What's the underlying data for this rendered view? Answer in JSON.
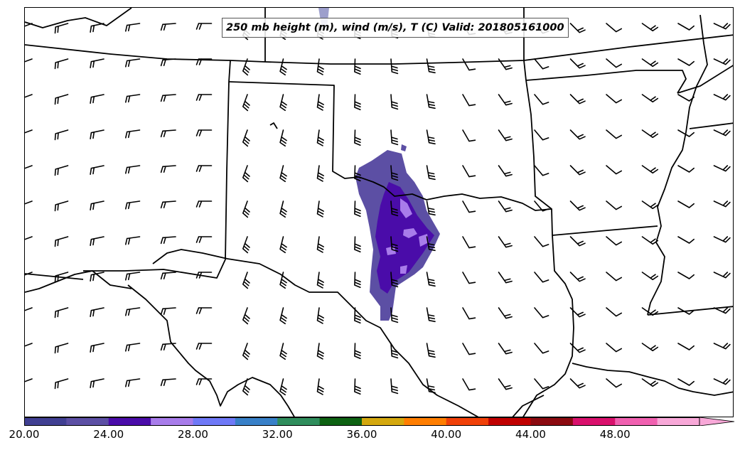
{
  "title": "250 mb height (m), wind (m/s), T (C) Valid: 201805161000",
  "colorbar": {
    "min": 20,
    "max": 52,
    "step": 2,
    "ticks": [
      "20.00",
      "24.00",
      "28.00",
      "32.00",
      "36.00",
      "40.00",
      "44.00",
      "48.00"
    ],
    "tick_values": [
      20,
      24,
      28,
      32,
      36,
      40,
      44,
      48
    ],
    "colors": [
      "#403f92",
      "#5c4fa4",
      "#4a0ca9",
      "#a87cea",
      "#6f79f7",
      "#3880c8",
      "#2f8d5c",
      "#0d6212",
      "#d4a80e",
      "#ff7e00",
      "#f04008",
      "#c00000",
      "#8b0a10",
      "#d9106c",
      "#f060b0",
      "#f8a8d8"
    ]
  },
  "shaded_region": {
    "colors": {
      "outer": "#5c4fa4",
      "mid": "#4a0ca9",
      "inner": "#a87cea",
      "top_bleed": "#9d9fcc"
    }
  },
  "map": {
    "line_color": "#000000",
    "barb_color": "#000000"
  }
}
